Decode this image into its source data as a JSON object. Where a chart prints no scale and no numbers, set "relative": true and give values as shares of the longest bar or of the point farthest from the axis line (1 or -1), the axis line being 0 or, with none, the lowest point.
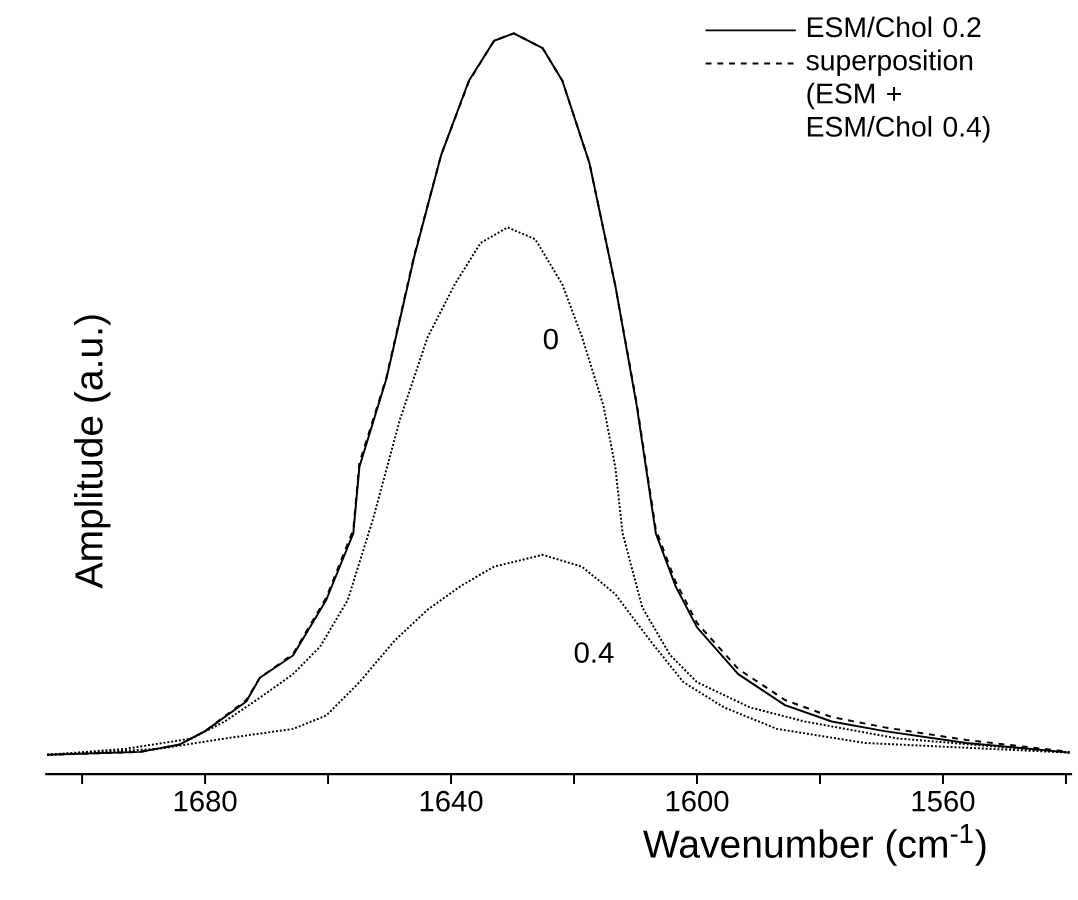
{
  "chart_data": {
    "type": "line",
    "xlabel": "Wavenumber (cm$^{-1}$)",
    "ylabel": "Amplitude (a.u.)",
    "relative": true,
    "xlim": [
      1706,
      1539
    ],
    "xticks": [
      {
        "value": 1700,
        "label": null
      },
      1680,
      {
        "value": 1660,
        "label": null
      },
      1640,
      {
        "value": 1620,
        "label": null
      },
      1600,
      {
        "value": 1580,
        "label": null
      },
      1560,
      {
        "value": 1540,
        "label": null
      }
    ],
    "legend": "top right",
    "grid": false,
    "series": [
      {
        "name": "ESM/Chol 0.2",
        "color": "#000000",
        "line_style": "solid",
        "x": [
          1705.7,
          1690.5,
          1684.1,
          1680,
          1673.3,
          1671.1,
          1665.7,
          1660.3,
          1655.9,
          1654.9,
          1650.5,
          1646,
          1641.6,
          1637.1,
          1633,
          1629.8,
          1625.1,
          1621.9,
          1617.5,
          1613.3,
          1609.8,
          1606.7,
          1603.5,
          1600,
          1593.3,
          1585.7,
          1578.1,
          1569.5,
          1556.2,
          1539.4
        ],
        "values": [
          0.026,
          0.03,
          0.04,
          0.058,
          0.098,
          0.13,
          0.16,
          0.235,
          0.325,
          0.415,
          0.534,
          0.698,
          0.836,
          0.936,
          0.99,
          1.0,
          0.98,
          0.936,
          0.825,
          0.66,
          0.497,
          0.325,
          0.254,
          0.198,
          0.135,
          0.093,
          0.071,
          0.058,
          0.042,
          0.029
        ]
      },
      {
        "name": "superposition (ESM + ESM/Chol 0.4)",
        "color": "#000000",
        "line_style": "dashed",
        "x": [
          1705.7,
          1690.5,
          1684.1,
          1680,
          1673.3,
          1671.1,
          1665.7,
          1660.3,
          1655.9,
          1654.9,
          1650.5,
          1646,
          1641.6,
          1637.1,
          1633,
          1629.8,
          1625.1,
          1621.9,
          1617.5,
          1613.3,
          1609.8,
          1606.7,
          1603.5,
          1600,
          1593.3,
          1585.7,
          1578.1,
          1569.5,
          1556.2,
          1539.4
        ],
        "values": [
          0.026,
          0.03,
          0.04,
          0.058,
          0.1,
          0.13,
          0.162,
          0.238,
          0.33,
          0.42,
          0.536,
          0.7,
          0.836,
          0.935,
          0.99,
          1.0,
          0.98,
          0.936,
          0.825,
          0.66,
          0.5,
          0.33,
          0.26,
          0.204,
          0.142,
          0.1,
          0.077,
          0.063,
          0.046,
          0.03
        ]
      },
      {
        "color": "#000000",
        "line_style": "dotted",
        "x": [
          1705.7,
          1693,
          1682.2,
          1676.8,
          1671.1,
          1665.7,
          1661.3,
          1656.8,
          1652.7,
          1648.3,
          1643.8,
          1639.4,
          1635.2,
          1630.8,
          1626.3,
          1621.9,
          1618.7,
          1615.2,
          1613.3,
          1612.1,
          1608.9,
          1604.4,
          1600,
          1591.4,
          1582.5,
          1567.3,
          1539.4
        ],
        "values": [
          0.026,
          0.034,
          0.048,
          0.071,
          0.103,
          0.135,
          0.172,
          0.235,
          0.344,
          0.479,
          0.59,
          0.661,
          0.717,
          0.738,
          0.722,
          0.661,
          0.59,
          0.497,
          0.415,
          0.325,
          0.225,
          0.161,
          0.124,
          0.09,
          0.071,
          0.048,
          0.029
        ]
      },
      {
        "color": "#000000",
        "line_style": "dotted",
        "x": [
          1705.7,
          1687.6,
          1676.8,
          1665.7,
          1660.3,
          1654.9,
          1649.2,
          1643.8,
          1638.4,
          1633,
          1625.1,
          1618.7,
          1613.3,
          1607.6,
          1602.2,
          1595.6,
          1587,
          1572.7,
          1539.4
        ],
        "values": [
          0.026,
          0.034,
          0.048,
          0.061,
          0.079,
          0.124,
          0.18,
          0.222,
          0.254,
          0.28,
          0.296,
          0.28,
          0.243,
          0.18,
          0.124,
          0.09,
          0.061,
          0.042,
          0.029
        ]
      }
    ],
    "annotations": [
      "0",
      "0.4"
    ]
  }
}
